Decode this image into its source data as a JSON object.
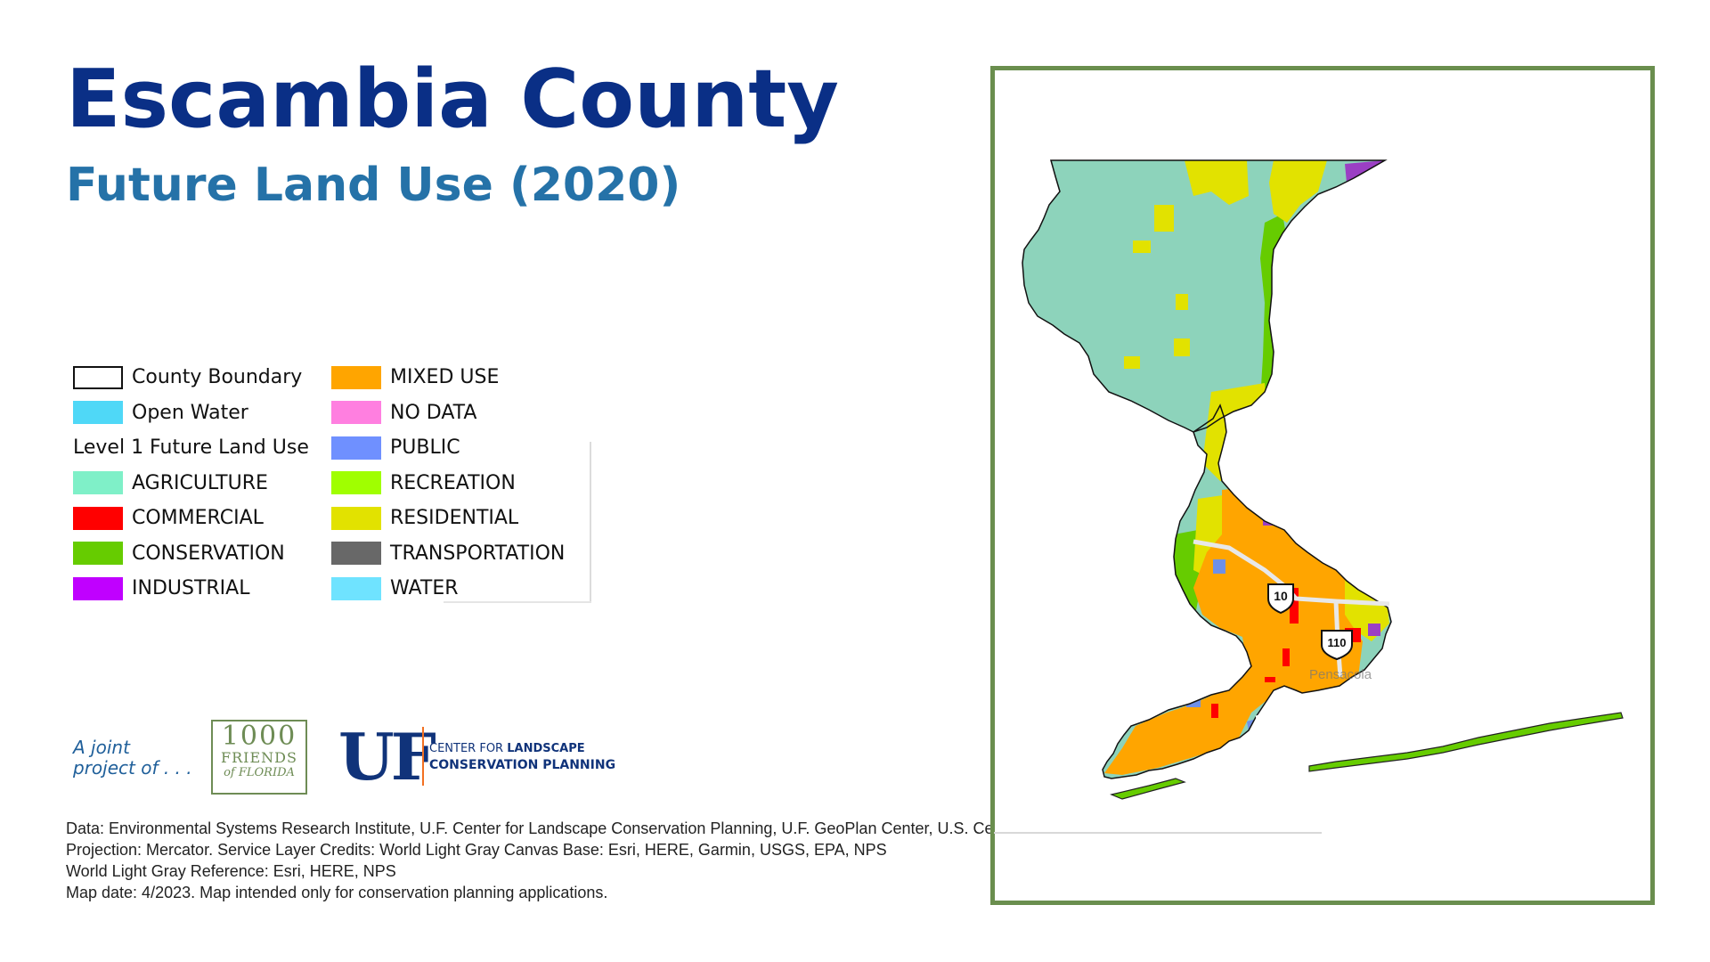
{
  "header": {
    "title": "Escambia County",
    "subtitle": "Future Land Use (2020)"
  },
  "legend": {
    "col1": [
      {
        "label": "County Boundary",
        "color": "#ffffff",
        "outline": "#111111"
      },
      {
        "label": "Open Water",
        "color": "#4fd8f7"
      },
      {
        "heading": "Level 1 Future Land Use"
      },
      {
        "label": "AGRICULTURE",
        "color": "#7ff0c8"
      },
      {
        "label": "COMMERCIAL",
        "color": "#ff0000"
      },
      {
        "label": "CONSERVATION",
        "color": "#66cc00"
      },
      {
        "label": "INDUSTRIAL",
        "color": "#c000ff"
      }
    ],
    "col2": [
      {
        "label": "MIXED USE",
        "color": "#ffa500"
      },
      {
        "label": "NO DATA",
        "color": "#ff7fe0"
      },
      {
        "label": "PUBLIC",
        "color": "#6f90ff"
      },
      {
        "label": "RECREATION",
        "color": "#a0ff00"
      },
      {
        "label": "RESIDENTIAL",
        "color": "#e2e200"
      },
      {
        "label": "TRANSPORTATION",
        "color": "#686868"
      },
      {
        "label": "WATER",
        "color": "#6fe3ff"
      }
    ]
  },
  "credits": {
    "joint_line1": "A joint",
    "joint_line2": "project of . . .",
    "logo1000_num": "1000",
    "logo1000_word1": "FRIENDS",
    "logo1000_word2": "of FLORIDA",
    "uf_text": "UF",
    "uf_center_line1_prefix": "CENTER FOR ",
    "uf_center_line1_bold": "LANDSCAPE",
    "uf_center_line2": "CONSERVATION PLANNING",
    "source_lines": [
      "Data: Environmental Systems Research Institute, U.F. Center for Landscape Conservation Planning, U.F. GeoPlan Center, U.S. Census Bureau.",
      "Projection: Mercator. Service Layer Credits: World Light Gray Canvas Base: Esri, HERE, Garmin, USGS, EPA, NPS",
      "World Light Gray Reference: Esri, HERE, NPS",
      "Map date: 4/2023. Map intended only for conservation planning applications."
    ]
  },
  "map": {
    "highway_i10": "10",
    "highway_i110": "110",
    "city_label": "Pensacola",
    "colors": {
      "agriculture": "#8dd3bb",
      "residential": "#e2e200",
      "conservation": "#66cc00",
      "mixed_use": "#ffa500",
      "industrial": "#9b3fc4",
      "public": "#6f90e8",
      "commercial": "#ff0000",
      "frame": "#6a8e4e"
    }
  }
}
